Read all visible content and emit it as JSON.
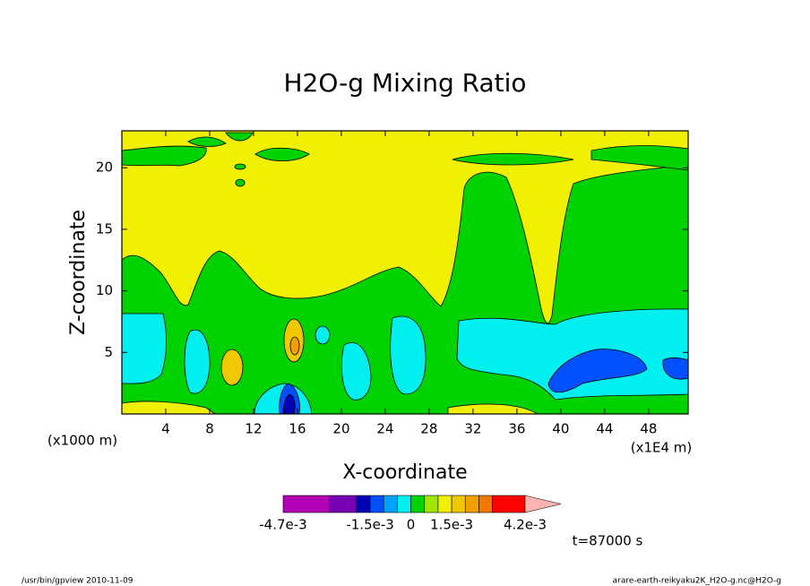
{
  "chart_data": {
    "type": "contour",
    "title": "H2O-g Mixing Ratio",
    "x_label": "X-coordinate",
    "y_label": "Z-coordinate",
    "x_unit": "(x1E4 m)",
    "y_unit": "(x1000 m)",
    "xlim": [
      0,
      51.6
    ],
    "xticks": [
      4,
      8,
      12,
      16,
      20,
      24,
      28,
      32,
      36,
      40,
      44,
      48
    ],
    "ylim": [
      0,
      23
    ],
    "yticks": [
      5,
      10,
      15,
      20
    ],
    "colorbar": {
      "levels": [
        -0.0047,
        -0.003,
        -0.002,
        -0.0015,
        -0.001,
        -0.0005,
        0,
        0.0005,
        0.001,
        0.0015,
        0.002,
        0.0025,
        0.003,
        0.0042
      ],
      "colors": [
        "#b400b4",
        "#7800b4",
        "#0000b4",
        "#0050ff",
        "#00a0ff",
        "#00f0f0",
        "#00d200",
        "#a0e600",
        "#f0f000",
        "#f0c800",
        "#f0a000",
        "#f07800",
        "#ff0000",
        "#fa7a6e"
      ],
      "extend_color": "#ffb4b4",
      "ticks": [
        {
          "value": -0.0047,
          "label": "-4.7e-3"
        },
        {
          "value": -0.0015,
          "label": "-1.5e-3"
        },
        0,
        {
          "value": 0.0015,
          "label": "1.5e-3"
        },
        {
          "value": 0.0042,
          "label": "4.2e-3"
        }
      ]
    },
    "time_label": "t=87000 s",
    "footer_left": "/usr/bin/gpview  2010-11-09",
    "footer_right": "arare-earth-reikyaku2K_H2O-g.nc@H2O-g"
  }
}
